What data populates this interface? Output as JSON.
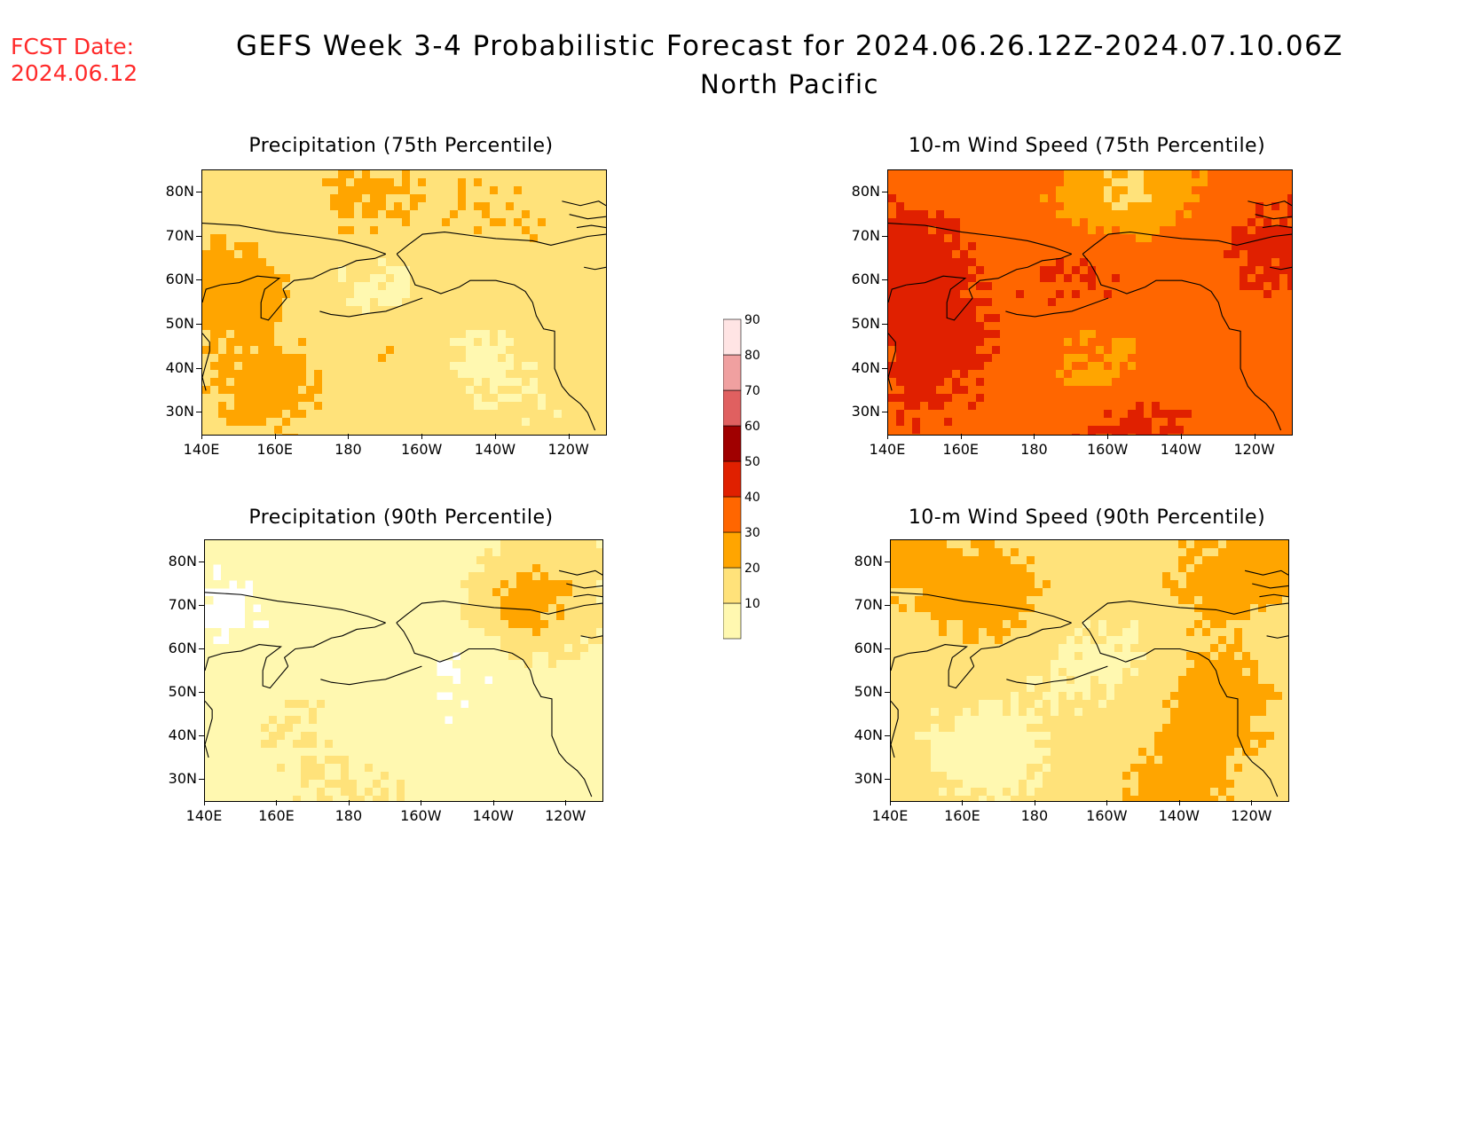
{
  "header": {
    "fcst_label": "FCST Date:",
    "fcst_date": "2024.06.12",
    "title": "GEFS Week 3-4 Probabilistic Forecast for 2024.06.26.12Z-2024.07.10.06Z",
    "subtitle": "North Pacific"
  },
  "axes": {
    "x_ticks": [
      "140E",
      "160E",
      "180",
      "160W",
      "140W",
      "120W"
    ],
    "y_ticks": [
      "80N",
      "70N",
      "60N",
      "50N",
      "40N",
      "30N"
    ]
  },
  "panels": [
    {
      "id": "precip75",
      "title": "Precipitation (75th Percentile)",
      "level": 1.6
    },
    {
      "id": "wind75",
      "title": "10-m Wind Speed (75th Percentile)",
      "level": 3.6
    },
    {
      "id": "precip90",
      "title": "Precipitation (90th Percentile)",
      "level": 0.6
    },
    {
      "id": "wind90",
      "title": "10-m Wind Speed (90th Percentile)",
      "level": 1.5
    }
  ],
  "colorbar": {
    "levels": [
      "10",
      "20",
      "30",
      "40",
      "50",
      "60",
      "70",
      "80",
      "90"
    ],
    "colors": [
      "#fff8b0",
      "#ffe27a",
      "#ffa500",
      "#ff6600",
      "#e02000",
      "#a00000",
      "#e06060",
      "#f0a0a0",
      "#ffe4e4"
    ]
  }
}
